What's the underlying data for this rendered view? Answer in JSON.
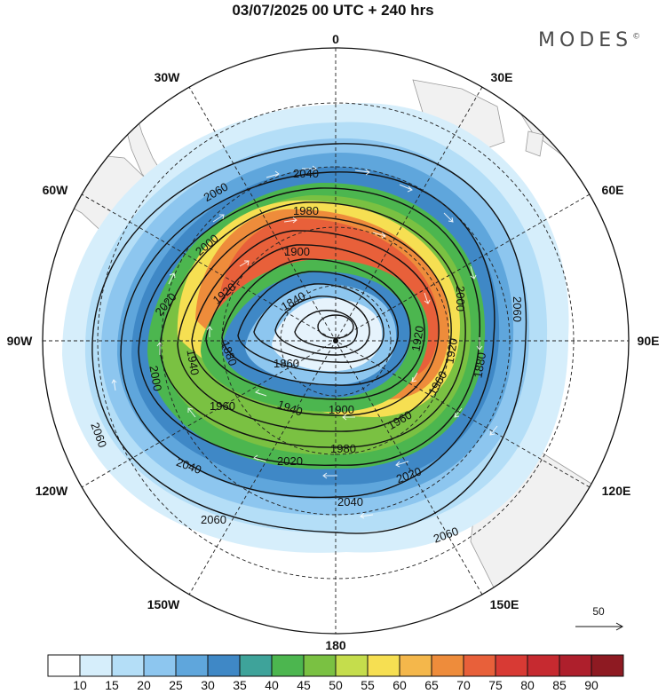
{
  "title": "03/07/2025  00 UTC  + 240 hrs",
  "logo": "MODES",
  "logo_mark": "©",
  "longitude_labels": {
    "lon_0": "0",
    "lon_30e": "30E",
    "lon_60e": "60E",
    "lon_90e": "90E",
    "lon_120e": "120E",
    "lon_150e": "150E",
    "lon_180": "180",
    "lon_150w": "150W",
    "lon_120w": "120W",
    "lon_90w": "90W",
    "lon_60w": "60W",
    "lon_30w": "30W"
  },
  "colorbar": {
    "colors": [
      "#ffffff",
      "#d6eefb",
      "#b4def7",
      "#8dc6ef",
      "#5fa6dc",
      "#3f88c6",
      "#3ea39a",
      "#4cb64f",
      "#7ac142",
      "#c5dd4c",
      "#f6df52",
      "#f4b74b",
      "#ee8c3b",
      "#e8603a",
      "#d83a34",
      "#c62a30",
      "#ae1f2c",
      "#8e1a22"
    ],
    "ticks": [
      "10",
      "15",
      "20",
      "25",
      "30",
      "35",
      "40",
      "45",
      "50",
      "55",
      "60",
      "65",
      "70",
      "75",
      "80",
      "85",
      "90"
    ]
  },
  "vector_reference": "50",
  "contour_labels": [
    "2060",
    "2040",
    "1980",
    "2000",
    "1900",
    "1920",
    "2020",
    "1840",
    "1880",
    "1940",
    "1960",
    "2000",
    "1860",
    "2060",
    "1900",
    "1940",
    "1960",
    "1980",
    "1960",
    "2020",
    "2040",
    "2060",
    "2020",
    "2040",
    "1920",
    "2000",
    "2060",
    "2060",
    "1920",
    "1880"
  ],
  "chart_data": {
    "type": "map",
    "projection": "polar-stereographic-south",
    "time": "03/07/2025 00 UTC",
    "forecast_lead": "+ 240 hrs",
    "shading": "wind speed",
    "shading_levels": [
      10,
      15,
      20,
      25,
      30,
      35,
      40,
      45,
      50,
      55,
      60,
      65,
      70,
      75,
      80,
      85,
      90
    ],
    "contour_levels": [
      1840,
      1860,
      1880,
      1900,
      1920,
      1940,
      1960,
      1980,
      2000,
      2020,
      2040,
      2060
    ],
    "vector_reference": 50
  }
}
